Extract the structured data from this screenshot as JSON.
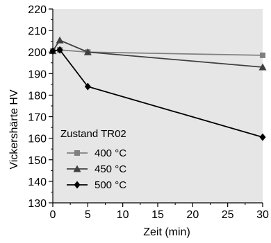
{
  "chart_data": {
    "type": "line",
    "xlabel": "Zeit (min)",
    "ylabel": "Vickershärte HV",
    "xlim": [
      0,
      30
    ],
    "ylim": [
      130,
      220
    ],
    "x_ticks": [
      0,
      5,
      10,
      15,
      20,
      25,
      30
    ],
    "y_ticks": [
      130,
      140,
      150,
      160,
      170,
      180,
      190,
      200,
      210,
      220
    ],
    "grid": false,
    "legend": {
      "title": "Zustand TR02",
      "placement": "bottom-left"
    },
    "series": [
      {
        "name": "400 °C",
        "marker": "square",
        "color": "#808080",
        "x": [
          0,
          1,
          5,
          30
        ],
        "y": [
          200.5,
          201,
          200,
          198.5
        ]
      },
      {
        "name": "450 °C",
        "marker": "triangle",
        "color": "#404040",
        "x": [
          0,
          1,
          5,
          30
        ],
        "y": [
          200.5,
          205.5,
          200,
          193
        ]
      },
      {
        "name": "500 °C",
        "marker": "diamond",
        "color": "#000000",
        "x": [
          0,
          1,
          5,
          30
        ],
        "y": [
          200.5,
          201,
          184,
          160.5
        ]
      }
    ]
  }
}
